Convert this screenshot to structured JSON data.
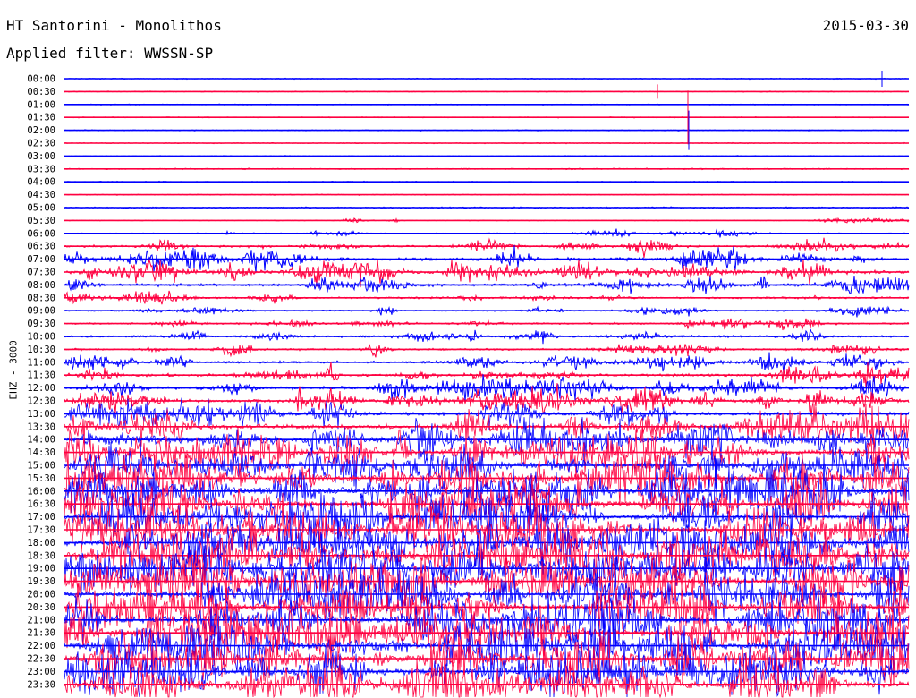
{
  "header": {
    "station": "HT Santorini - Monolithos",
    "date": "2015-03-30",
    "filter_label": "Applied filter: WWSSN-SP",
    "channel": "EHZ - 3000"
  },
  "colors": {
    "even_trace": "#0000ff",
    "odd_trace": "#ff0040",
    "text": "#000000"
  },
  "chart_data": {
    "type": "line",
    "title": "HT Santorini - Monolithos",
    "ylabel": "EHZ - 3000",
    "xlabel": "",
    "categories": [
      "00:00",
      "00:30",
      "01:00",
      "01:30",
      "02:00",
      "02:30",
      "03:00",
      "03:30",
      "04:00",
      "04:30",
      "05:00",
      "05:30",
      "06:00",
      "06:30",
      "07:00",
      "07:30",
      "08:00",
      "08:30",
      "09:00",
      "09:30",
      "10:00",
      "10:30",
      "11:00",
      "11:30",
      "12:00",
      "12:30",
      "13:00",
      "13:30",
      "14:00",
      "14:30",
      "15:00",
      "15:30",
      "16:00",
      "16:30",
      "17:00",
      "17:30",
      "18:00",
      "18:30",
      "19:00",
      "19:30",
      "20:00",
      "20:30",
      "21:00",
      "21:30",
      "22:00",
      "22:30",
      "23:00",
      "23:30"
    ],
    "series": [
      {
        "values": [
          0.02,
          0.02,
          0.02,
          0.02,
          0.03,
          0.02,
          0.02,
          0.05,
          0.04,
          0.03,
          0.06,
          0.1,
          0.15,
          0.3,
          0.45,
          0.5,
          0.4,
          0.3,
          0.2,
          0.25,
          0.3,
          0.3,
          0.35,
          0.4,
          0.45,
          0.5,
          0.6,
          0.7,
          0.8,
          0.85,
          0.9,
          0.95,
          1.0,
          1.0,
          1.0,
          1.0,
          1.0,
          1.0,
          1.0,
          1.0,
          1.0,
          1.0,
          1.0,
          1.0,
          1.0,
          1.0,
          1.0,
          1.0
        ]
      }
    ]
  }
}
